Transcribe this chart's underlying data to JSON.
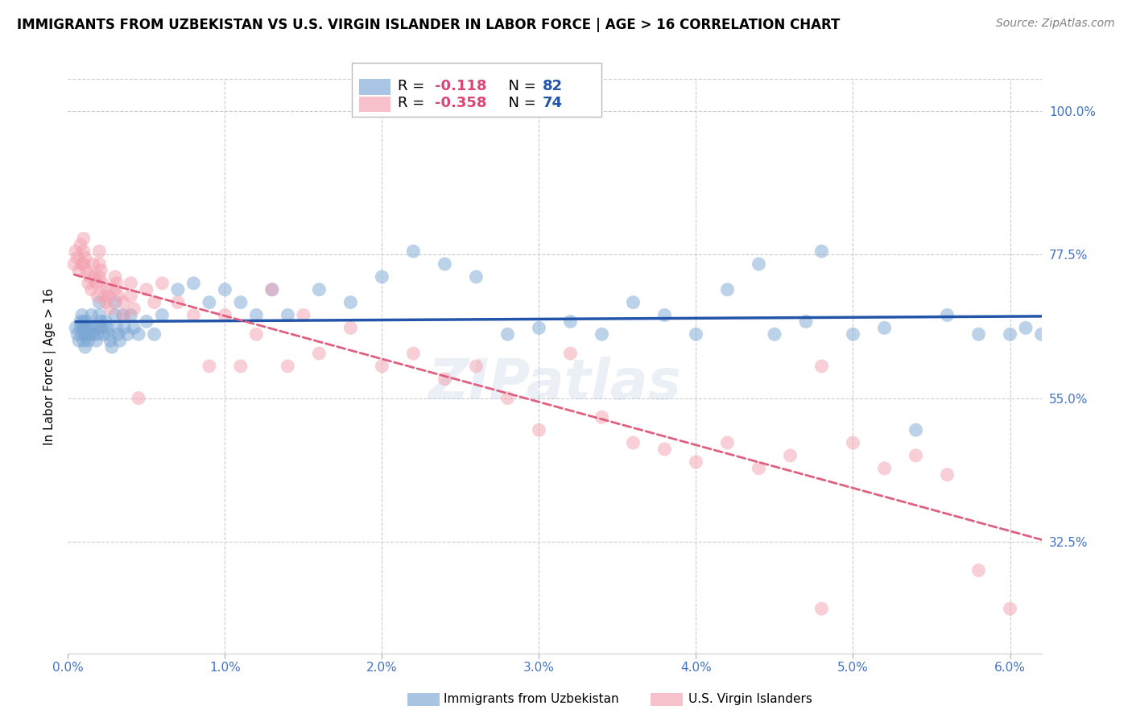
{
  "title": "IMMIGRANTS FROM UZBEKISTAN VS U.S. VIRGIN ISLANDER IN LABOR FORCE | AGE > 16 CORRELATION CHART",
  "source": "Source: ZipAtlas.com",
  "ylabel": "In Labor Force | Age > 16",
  "xlim": [
    0.0,
    0.062
  ],
  "ylim": [
    0.15,
    1.05
  ],
  "xticks": [
    0.0,
    0.01,
    0.02,
    0.03,
    0.04,
    0.05,
    0.06
  ],
  "xticklabels": [
    "0.0%",
    "1.0%",
    "2.0%",
    "3.0%",
    "4.0%",
    "5.0%",
    "6.0%"
  ],
  "yticks_right": [
    1.0,
    0.775,
    0.55,
    0.325
  ],
  "yticklabels_right": [
    "100.0%",
    "77.5%",
    "55.0%",
    "32.5%"
  ],
  "blue_color": "#7BA7D4",
  "pink_color": "#F4A0B0",
  "blue_line_color": "#2255AA",
  "pink_line_color": "#E06080",
  "legend_label_blue": "Immigrants from Uzbekistan",
  "legend_label_pink": "U.S. Virgin Islanders",
  "watermark": "ZIPatlas",
  "title_fontsize": 12,
  "axis_tick_color": "#4472C4",
  "grid_color": "#cccccc",
  "blue_x": [
    0.0005,
    0.0006,
    0.0007,
    0.0008,
    0.0008,
    0.0009,
    0.0009,
    0.001,
    0.001,
    0.001,
    0.0011,
    0.0011,
    0.0012,
    0.0012,
    0.0013,
    0.0013,
    0.0014,
    0.0015,
    0.0015,
    0.0016,
    0.0017,
    0.0018,
    0.0019,
    0.002,
    0.002,
    0.002,
    0.0021,
    0.0022,
    0.0023,
    0.0024,
    0.0025,
    0.0026,
    0.0027,
    0.0028,
    0.003,
    0.003,
    0.0031,
    0.0032,
    0.0033,
    0.0035,
    0.0036,
    0.0038,
    0.004,
    0.0042,
    0.0045,
    0.005,
    0.0055,
    0.006,
    0.007,
    0.008,
    0.009,
    0.01,
    0.011,
    0.012,
    0.013,
    0.014,
    0.016,
    0.018,
    0.02,
    0.022,
    0.024,
    0.026,
    0.028,
    0.03,
    0.032,
    0.034,
    0.036,
    0.038,
    0.04,
    0.042,
    0.045,
    0.047,
    0.05,
    0.052,
    0.054,
    0.056,
    0.058,
    0.06,
    0.061,
    0.062,
    0.048,
    0.044
  ],
  "blue_y": [
    0.66,
    0.65,
    0.64,
    0.66,
    0.67,
    0.65,
    0.68,
    0.67,
    0.66,
    0.64,
    0.65,
    0.63,
    0.67,
    0.65,
    0.66,
    0.64,
    0.65,
    0.68,
    0.66,
    0.65,
    0.66,
    0.64,
    0.65,
    0.7,
    0.68,
    0.66,
    0.67,
    0.66,
    0.65,
    0.67,
    0.66,
    0.65,
    0.64,
    0.63,
    0.7,
    0.68,
    0.66,
    0.65,
    0.64,
    0.68,
    0.66,
    0.65,
    0.68,
    0.66,
    0.65,
    0.67,
    0.65,
    0.68,
    0.72,
    0.73,
    0.7,
    0.72,
    0.7,
    0.68,
    0.72,
    0.68,
    0.72,
    0.7,
    0.74,
    0.78,
    0.76,
    0.74,
    0.65,
    0.66,
    0.67,
    0.65,
    0.7,
    0.68,
    0.65,
    0.72,
    0.65,
    0.67,
    0.65,
    0.66,
    0.5,
    0.68,
    0.65,
    0.65,
    0.66,
    0.65,
    0.78,
    0.76
  ],
  "pink_x": [
    0.0004,
    0.0005,
    0.0006,
    0.0007,
    0.0008,
    0.0009,
    0.001,
    0.001,
    0.001,
    0.0011,
    0.0012,
    0.0013,
    0.0014,
    0.0015,
    0.0016,
    0.0017,
    0.0018,
    0.0019,
    0.002,
    0.002,
    0.002,
    0.0021,
    0.0022,
    0.0023,
    0.0024,
    0.0025,
    0.0026,
    0.0027,
    0.003,
    0.003,
    0.0031,
    0.0032,
    0.0035,
    0.0036,
    0.004,
    0.004,
    0.0042,
    0.0045,
    0.005,
    0.0055,
    0.006,
    0.007,
    0.008,
    0.009,
    0.01,
    0.011,
    0.012,
    0.013,
    0.014,
    0.015,
    0.016,
    0.018,
    0.02,
    0.022,
    0.024,
    0.026,
    0.028,
    0.03,
    0.032,
    0.034,
    0.036,
    0.038,
    0.04,
    0.042,
    0.044,
    0.046,
    0.048,
    0.05,
    0.052,
    0.054,
    0.056,
    0.058,
    0.06,
    0.048
  ],
  "pink_y": [
    0.76,
    0.78,
    0.77,
    0.75,
    0.79,
    0.76,
    0.8,
    0.78,
    0.76,
    0.77,
    0.75,
    0.73,
    0.74,
    0.72,
    0.76,
    0.74,
    0.73,
    0.71,
    0.78,
    0.76,
    0.74,
    0.75,
    0.73,
    0.71,
    0.7,
    0.72,
    0.71,
    0.69,
    0.74,
    0.72,
    0.73,
    0.71,
    0.7,
    0.68,
    0.73,
    0.71,
    0.69,
    0.55,
    0.72,
    0.7,
    0.73,
    0.7,
    0.68,
    0.6,
    0.68,
    0.6,
    0.65,
    0.72,
    0.6,
    0.68,
    0.62,
    0.66,
    0.6,
    0.62,
    0.58,
    0.6,
    0.55,
    0.5,
    0.62,
    0.52,
    0.48,
    0.47,
    0.45,
    0.48,
    0.44,
    0.46,
    0.22,
    0.48,
    0.44,
    0.46,
    0.43,
    0.28,
    0.22,
    0.6
  ]
}
